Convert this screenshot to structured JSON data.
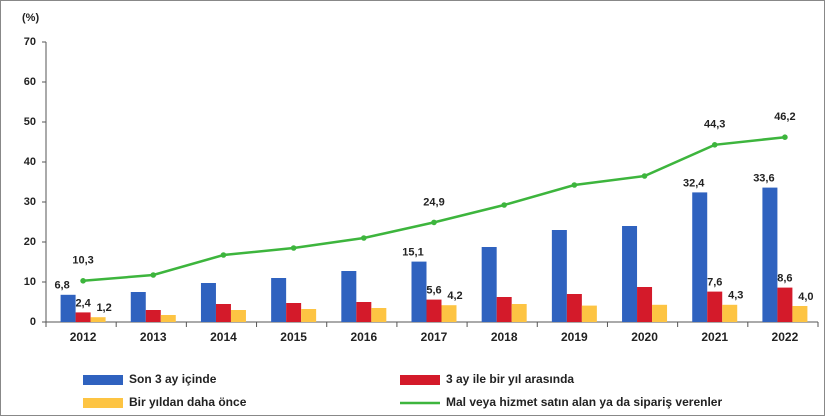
{
  "chart_data": {
    "type": "bar_line",
    "y_label": "(%)",
    "categories": [
      "2012",
      "2013",
      "2014",
      "2015",
      "2016",
      "2017",
      "2018",
      "2019",
      "2020",
      "2021",
      "2022"
    ],
    "ylim": [
      0,
      70
    ],
    "yticks": [
      0,
      10,
      20,
      30,
      40,
      50,
      60,
      70
    ],
    "grid": false,
    "series": [
      {
        "name": "Son 3 ay içinde",
        "type": "bar",
        "color": "#2f62bf",
        "values": [
          6.8,
          7.5,
          9.75,
          11,
          12.75,
          15.1,
          18.75,
          23,
          24,
          32.4,
          33.6
        ],
        "value_labels": [
          "6,8",
          null,
          null,
          null,
          null,
          "15,1",
          null,
          null,
          null,
          "32,4",
          "33,6"
        ]
      },
      {
        "name": "3 ay ile bir yıl arasında",
        "type": "bar",
        "color": "#d41a2a",
        "values": [
          2.4,
          3,
          4.5,
          4.75,
          5,
          5.6,
          6.25,
          7,
          8.75,
          7.6,
          8.6
        ],
        "value_labels": [
          "2,4",
          null,
          null,
          null,
          null,
          "5,6",
          null,
          null,
          null,
          "7,6",
          "8,6"
        ]
      },
      {
        "name": "Bir yıldan daha önce",
        "type": "bar",
        "color": "#fdc443",
        "values": [
          1.2,
          1.75,
          3,
          3.25,
          3.5,
          4.2,
          4.5,
          4.1,
          4.3,
          4.3,
          4.0
        ],
        "value_labels": [
          "1,2",
          null,
          null,
          null,
          null,
          "4,2",
          null,
          null,
          null,
          "4,3",
          "4,0"
        ]
      },
      {
        "name": "Mal veya hizmet satın alan ya da sipariş verenler",
        "type": "line",
        "color": "#3db53d",
        "values": [
          10.3,
          11.75,
          16.75,
          18.5,
          21,
          24.9,
          29.25,
          34.25,
          36.5,
          44.3,
          46.2
        ],
        "value_labels": [
          "10,3",
          null,
          null,
          null,
          null,
          "24,9",
          null,
          null,
          null,
          "44,3",
          "46,2"
        ]
      }
    ]
  }
}
